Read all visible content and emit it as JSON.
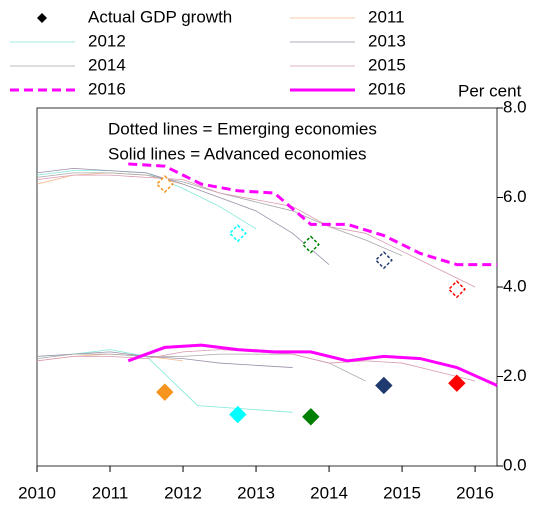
{
  "chart_data": {
    "type": "line",
    "y_axis_label": "Per cent",
    "annotations": [
      "Dotted lines = Emerging economies",
      "Solid lines = Advanced economies"
    ],
    "xlim": [
      2010,
      2016.3
    ],
    "xticks": [
      2010,
      2011,
      2012,
      2013,
      2014,
      2015,
      2016
    ],
    "ylim": [
      0,
      8
    ],
    "yticks": [
      {
        "value": 0,
        "label": "0.0"
      },
      {
        "value": 2,
        "label": "2.0"
      },
      {
        "value": 4,
        "label": "4.0"
      },
      {
        "value": 6,
        "label": "6.0"
      },
      {
        "value": 8,
        "label": "8.0"
      }
    ],
    "actual": {
      "name": "Actual GDP growth",
      "x": [
        2011.75,
        2012.75,
        2013.75,
        2014.75,
        2015.75
      ],
      "colors": [
        "#f7941d",
        "#00ffff",
        "#008000",
        "#1f3a6e",
        "#ff0000"
      ],
      "emerging": [
        6.3,
        5.2,
        4.95,
        4.6,
        3.95
      ],
      "advanced": [
        1.65,
        1.15,
        1.1,
        1.8,
        1.85
      ]
    },
    "series": [
      {
        "name": "2011",
        "color": "#f5b98a",
        "width": 0.8,
        "dash": false,
        "emerging": {
          "x": [
            2010,
            2010.5,
            2011,
            2011.5,
            2012
          ],
          "values": [
            6.3,
            6.5,
            6.55,
            6.5,
            6.3
          ]
        },
        "advanced": {
          "x": [
            2010,
            2010.5,
            2011,
            2011.5,
            2012
          ],
          "values": [
            2.35,
            2.45,
            2.5,
            2.45,
            2.35
          ]
        }
      },
      {
        "name": "2012",
        "color": "#7fe8d8",
        "width": 0.8,
        "dash": false,
        "emerging": {
          "x": [
            2010,
            2010.5,
            2011,
            2011.5,
            2012,
            2012.5,
            2013
          ],
          "values": [
            6.5,
            6.6,
            6.6,
            6.55,
            6.2,
            5.8,
            5.3
          ]
        },
        "advanced": {
          "x": [
            2010,
            2010.5,
            2011,
            2011.5,
            2012.2,
            2013.5
          ],
          "values": [
            2.45,
            2.5,
            2.6,
            2.45,
            1.35,
            1.2
          ]
        }
      },
      {
        "name": "2013",
        "color": "#9b8ea8",
        "width": 0.8,
        "dash": false,
        "emerging": {
          "x": [
            2010,
            2010.5,
            2011,
            2011.5,
            2012,
            2012.5,
            2013,
            2013.5,
            2014
          ],
          "values": [
            6.55,
            6.65,
            6.6,
            6.55,
            6.3,
            6.0,
            5.7,
            5.2,
            4.5
          ]
        },
        "advanced": {
          "x": [
            2010,
            2010.5,
            2011,
            2011.5,
            2012,
            2012.5,
            2013,
            2013.5
          ],
          "values": [
            2.45,
            2.5,
            2.55,
            2.45,
            2.4,
            2.3,
            2.25,
            2.2
          ]
        }
      },
      {
        "name": "2014",
        "color": "#a8a8a8",
        "width": 0.8,
        "dash": false,
        "emerging": {
          "x": [
            2010,
            2010.5,
            2011,
            2011.5,
            2012,
            2012.5,
            2013,
            2013.5,
            2014,
            2014.5,
            2015
          ],
          "values": [
            6.45,
            6.55,
            6.55,
            6.5,
            6.35,
            6.1,
            5.9,
            5.7,
            5.35,
            5.05,
            4.7
          ]
        },
        "advanced": {
          "x": [
            2010,
            2010.5,
            2011,
            2011.5,
            2012,
            2012.5,
            2013,
            2013.5,
            2014,
            2014.5
          ],
          "values": [
            2.4,
            2.5,
            2.5,
            2.45,
            2.45,
            2.5,
            2.5,
            2.5,
            2.3,
            1.9
          ]
        }
      },
      {
        "name": "2015",
        "color": "#d89ab0",
        "width": 0.8,
        "dash": false,
        "emerging": {
          "x": [
            2010,
            2010.5,
            2011,
            2011.5,
            2012,
            2012.5,
            2013,
            2013.5,
            2014,
            2014.5,
            2015,
            2015.5,
            2016
          ],
          "values": [
            6.4,
            6.5,
            6.5,
            6.45,
            6.4,
            6.1,
            5.95,
            5.8,
            5.35,
            5.2,
            4.8,
            4.4,
            4.0
          ]
        },
        "advanced": {
          "x": [
            2010,
            2010.5,
            2011,
            2011.5,
            2012,
            2012.5,
            2013,
            2013.5,
            2014,
            2014.5,
            2015,
            2015.5,
            2016
          ],
          "values": [
            2.35,
            2.45,
            2.45,
            2.4,
            2.55,
            2.6,
            2.55,
            2.5,
            2.3,
            2.35,
            2.3,
            2.1,
            1.9
          ]
        }
      },
      {
        "name": "2016",
        "color": "#ff00ff",
        "width": 3,
        "dash": true,
        "emerging": {
          "x": [
            2011.25,
            2011.75,
            2012.25,
            2012.75,
            2013.25,
            2013.75,
            2014.25,
            2014.75,
            2015.25,
            2015.75,
            2016.3
          ],
          "values": [
            6.75,
            6.7,
            6.3,
            6.15,
            6.1,
            5.4,
            5.4,
            5.15,
            4.75,
            4.5,
            4.5
          ]
        }
      },
      {
        "name": "2016",
        "color": "#ff00ff",
        "width": 3,
        "dash": false,
        "advanced": {
          "x": [
            2011.25,
            2011.75,
            2012.25,
            2012.75,
            2013.25,
            2013.75,
            2014.25,
            2014.75,
            2015.25,
            2015.75,
            2016.3
          ],
          "values": [
            2.35,
            2.65,
            2.7,
            2.6,
            2.55,
            2.55,
            2.35,
            2.45,
            2.4,
            2.2,
            1.8
          ]
        }
      }
    ]
  }
}
